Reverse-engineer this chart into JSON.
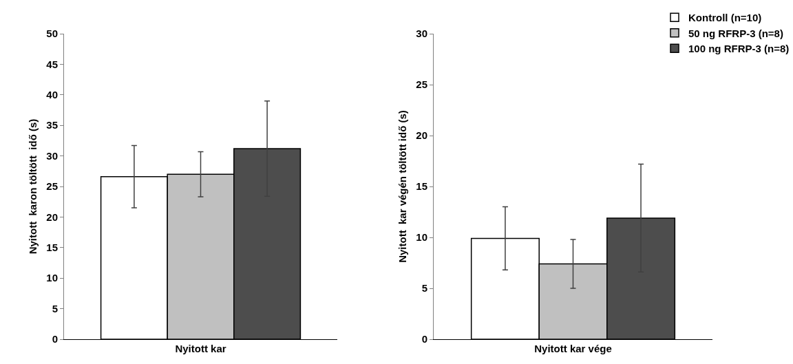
{
  "chart_data": [
    {
      "type": "bar",
      "categories": [
        "Nyitott kar"
      ],
      "ylabel": "Nyitott  karon töltött  idő (s)",
      "ylim": [
        0,
        50
      ],
      "yticks": [
        0,
        5,
        10,
        15,
        20,
        25,
        30,
        35,
        40,
        45,
        50
      ],
      "series": [
        {
          "color": "#ffffff",
          "values": [
            26.6
          ],
          "errors": [
            5.1
          ]
        },
        {
          "color": "#c0c0c0",
          "values": [
            27.0
          ],
          "errors": [
            3.7
          ]
        },
        {
          "color": "#4d4d4d",
          "values": [
            31.2
          ],
          "errors": [
            7.8
          ]
        }
      ]
    },
    {
      "type": "bar",
      "categories": [
        "Nyitott kar vége"
      ],
      "ylabel": "Nyitott  kar végén töltött idő (s)",
      "ylim": [
        0,
        30
      ],
      "yticks": [
        0,
        5,
        10,
        15,
        20,
        25,
        30
      ],
      "legend": "top right",
      "series": [
        {
          "name": "Kontroll (n=10)",
          "color": "#ffffff",
          "values": [
            9.9
          ],
          "errors": [
            3.1
          ]
        },
        {
          "name": "50 ng RFRP-3 (n=8)",
          "color": "#c0c0c0",
          "values": [
            7.4
          ],
          "errors": [
            2.4
          ]
        },
        {
          "name": "100 ng RFRP-3 (n=8)",
          "color": "#4d4d4d",
          "values": [
            11.9
          ],
          "errors": [
            5.3
          ]
        }
      ]
    }
  ]
}
